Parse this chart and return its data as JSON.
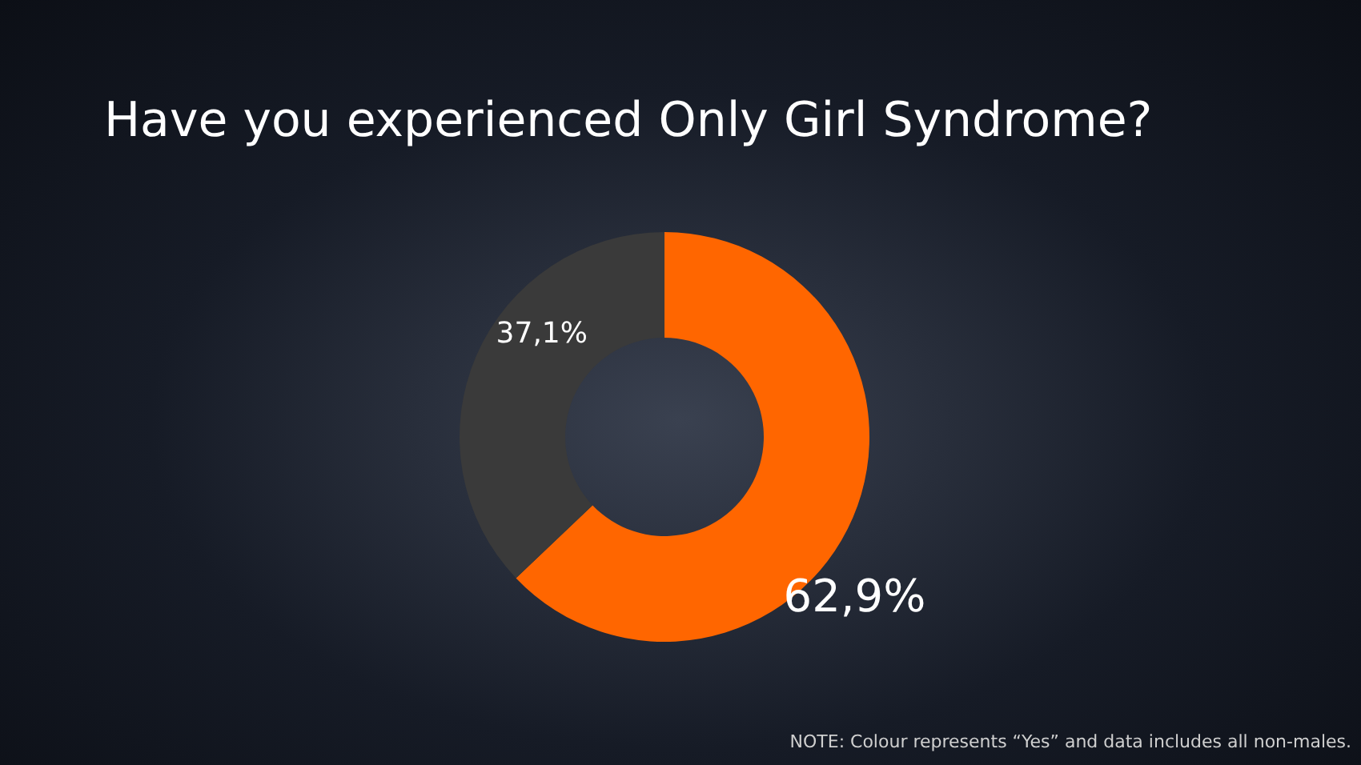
{
  "chart_data": {
    "type": "donut",
    "title": "Have you experienced Only Girl Syndrome?",
    "categories": [
      null,
      null
    ],
    "values": [
      62.9,
      37.1
    ],
    "colors": [
      "#ff6600",
      "#3a3a3a"
    ],
    "value_labels": [
      "62,9%",
      "37,1%"
    ],
    "annotations": [
      "NOTE: Colour represents “Yes” and data includes all non-males."
    ]
  }
}
